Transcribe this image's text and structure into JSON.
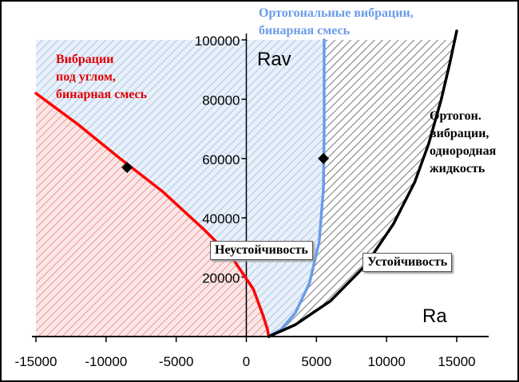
{
  "chart_data": {
    "type": "line",
    "xlabel": "Ra",
    "ylabel": "Rav",
    "xlim": [
      -15000,
      15000
    ],
    "ylim": [
      0,
      100000
    ],
    "x_ticks": [
      "-15000",
      "-10000",
      "-5000",
      "0",
      "5000",
      "10000",
      "15000"
    ],
    "y_ticks": [
      "20000",
      "40000",
      "60000",
      "80000",
      "100000"
    ],
    "series": [
      {
        "name": "Вибрации под углом, бинарная смесь",
        "color": "#ff0000",
        "points": [
          [
            -15000,
            82000
          ],
          [
            -12000,
            71500
          ],
          [
            -9000,
            60000
          ],
          [
            -6000,
            49000
          ],
          [
            -3000,
            36000
          ],
          [
            -1000,
            26500
          ],
          [
            500,
            16000
          ],
          [
            1200,
            7000
          ],
          [
            1500,
            2500
          ],
          [
            1600,
            0
          ]
        ]
      },
      {
        "name": "Ортогональные вибрации, бинарная смесь",
        "color": "#6b9bea",
        "points": [
          [
            1600,
            0
          ],
          [
            2500,
            2500
          ],
          [
            3500,
            8000
          ],
          [
            4500,
            18000
          ],
          [
            5200,
            32000
          ],
          [
            5500,
            50000
          ],
          [
            5550,
            70000
          ],
          [
            5550,
            100000
          ]
        ]
      },
      {
        "name": "Ортогон. вибрации, однородная жидкость",
        "color": "#000000",
        "points": [
          [
            1600,
            0
          ],
          [
            3500,
            4000
          ],
          [
            6000,
            12000
          ],
          [
            8500,
            24000
          ],
          [
            10500,
            38000
          ],
          [
            12000,
            52000
          ],
          [
            13000,
            65000
          ],
          [
            13900,
            80000
          ],
          [
            14500,
            92000
          ],
          [
            15000,
            103000
          ]
        ]
      }
    ],
    "markers": [
      [
        -8500,
        57000
      ],
      [
        5500,
        60000
      ]
    ],
    "annotations": {
      "angle_binary": [
        "Вибрации",
        "под углом,",
        "бинарная смесь"
      ],
      "orth_binary": [
        "Ортогональные вибрации,",
        "бинарная смесь"
      ],
      "orth_homog": [
        "Ортогон.",
        "вибрации,",
        "однородная",
        "жидкость"
      ],
      "unstable": "Неустойчивость",
      "stable": "Устойчивость"
    },
    "colors": {
      "red_fill": "#e88080",
      "blue_fill": "#9fbce0",
      "black_fill": "#555555"
    },
    "grid": false
  }
}
